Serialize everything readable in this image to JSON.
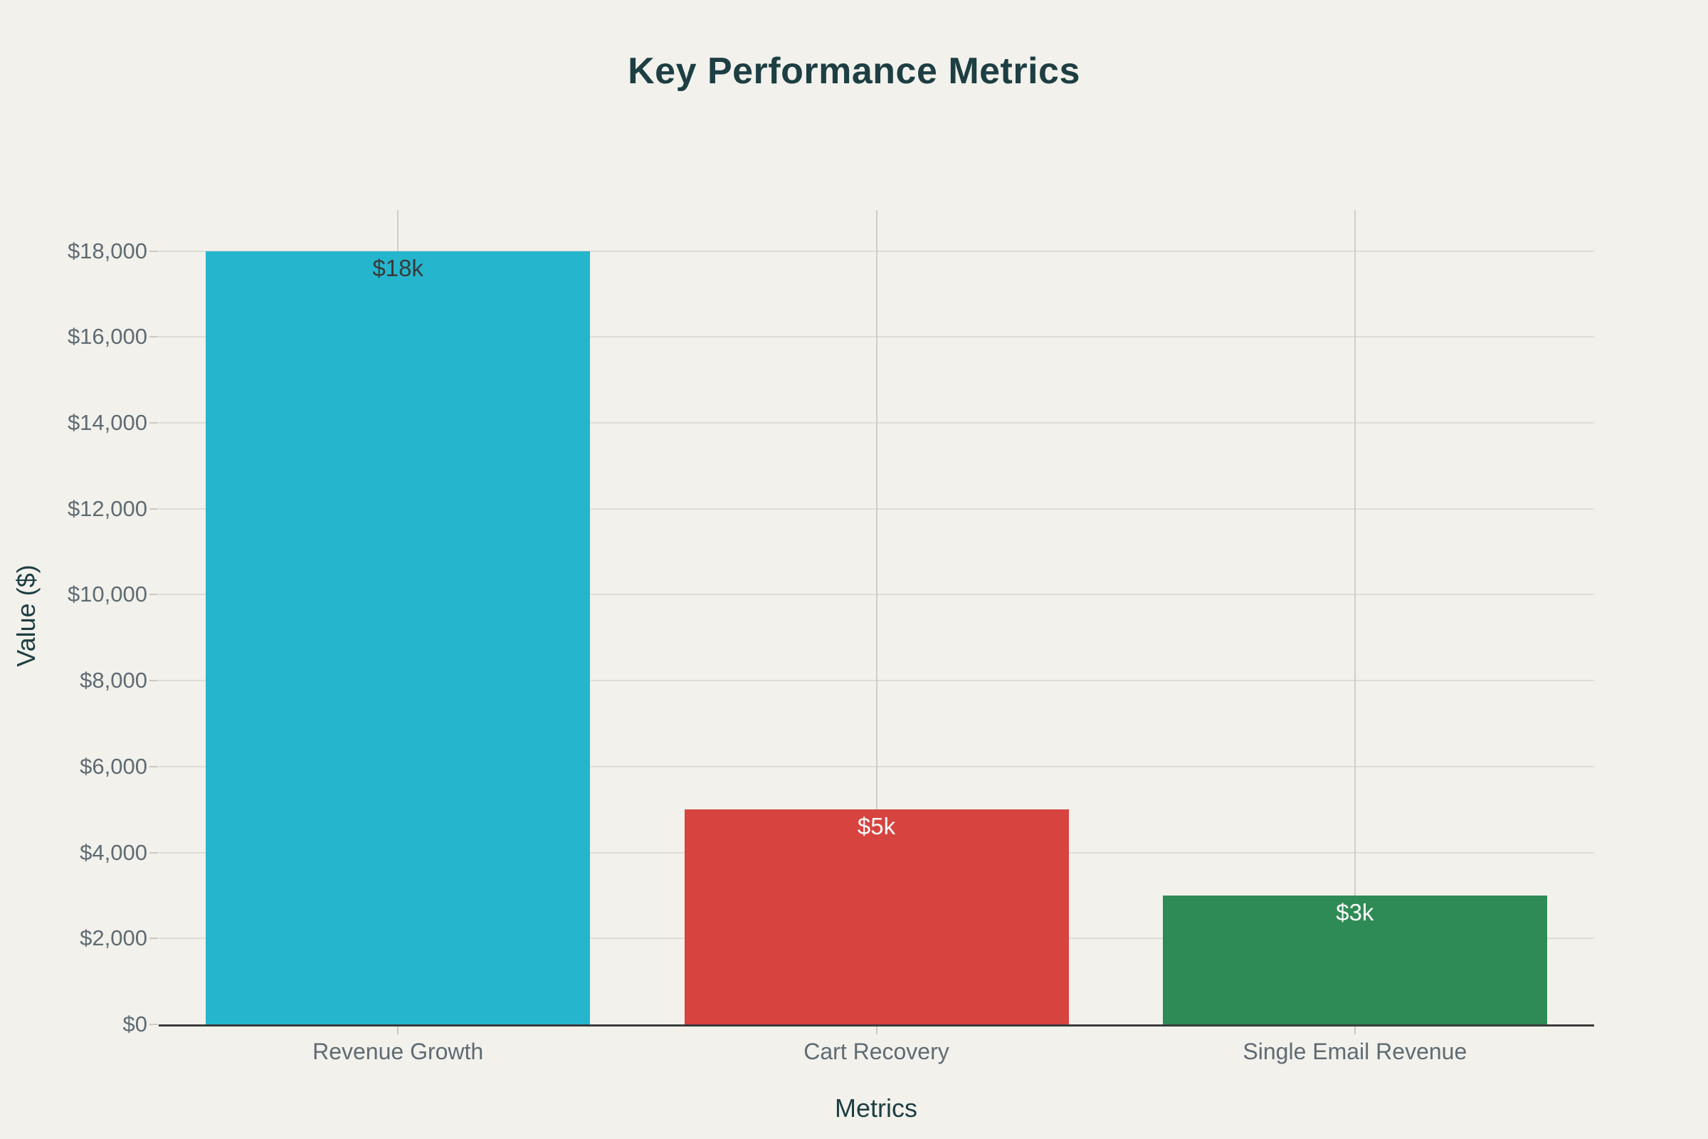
{
  "page": {
    "background": "#F2F1EB"
  },
  "chart_data": {
    "type": "bar",
    "title": "Key Performance Metrics",
    "xlabel": "Metrics",
    "ylabel": "Value ($)",
    "categories": [
      "Revenue Growth",
      "Cart Recovery",
      "Single Email Revenue"
    ],
    "values": [
      18000,
      5000,
      3000
    ],
    "bar_labels": [
      "$18k",
      "$5k",
      "$3k"
    ],
    "bar_colors": [
      "#25B6CE",
      "#D7433F",
      "#2E8B55"
    ],
    "bar_label_colors": [
      "#3A3A3A",
      "#FBFBFB",
      "#FBFBFB"
    ],
    "ylim": [
      0,
      18000
    ],
    "yticks": [
      {
        "value": 0,
        "label": "$0"
      },
      {
        "value": 2000,
        "label": "$2,000"
      },
      {
        "value": 4000,
        "label": "$4,000"
      },
      {
        "value": 6000,
        "label": "$6,000"
      },
      {
        "value": 8000,
        "label": "$8,000"
      },
      {
        "value": 10000,
        "label": "$10,000"
      },
      {
        "value": 12000,
        "label": "$12,000"
      },
      {
        "value": 14000,
        "label": "$14,000"
      },
      {
        "value": 16000,
        "label": "$16,000"
      },
      {
        "value": 18000,
        "label": "$18,000"
      }
    ],
    "grid": true,
    "legend": false,
    "colors": {
      "title": "#1D3E43",
      "axis_titles": "#1D3E43",
      "tick_labels": "#5F6B73",
      "gridline_h": "#DEDDD5",
      "gridline_v": "#CFCEC7",
      "tick_marks": "#C9C8C1",
      "axis_line": "#3B3B3B",
      "background": "#F2F1EB"
    }
  }
}
